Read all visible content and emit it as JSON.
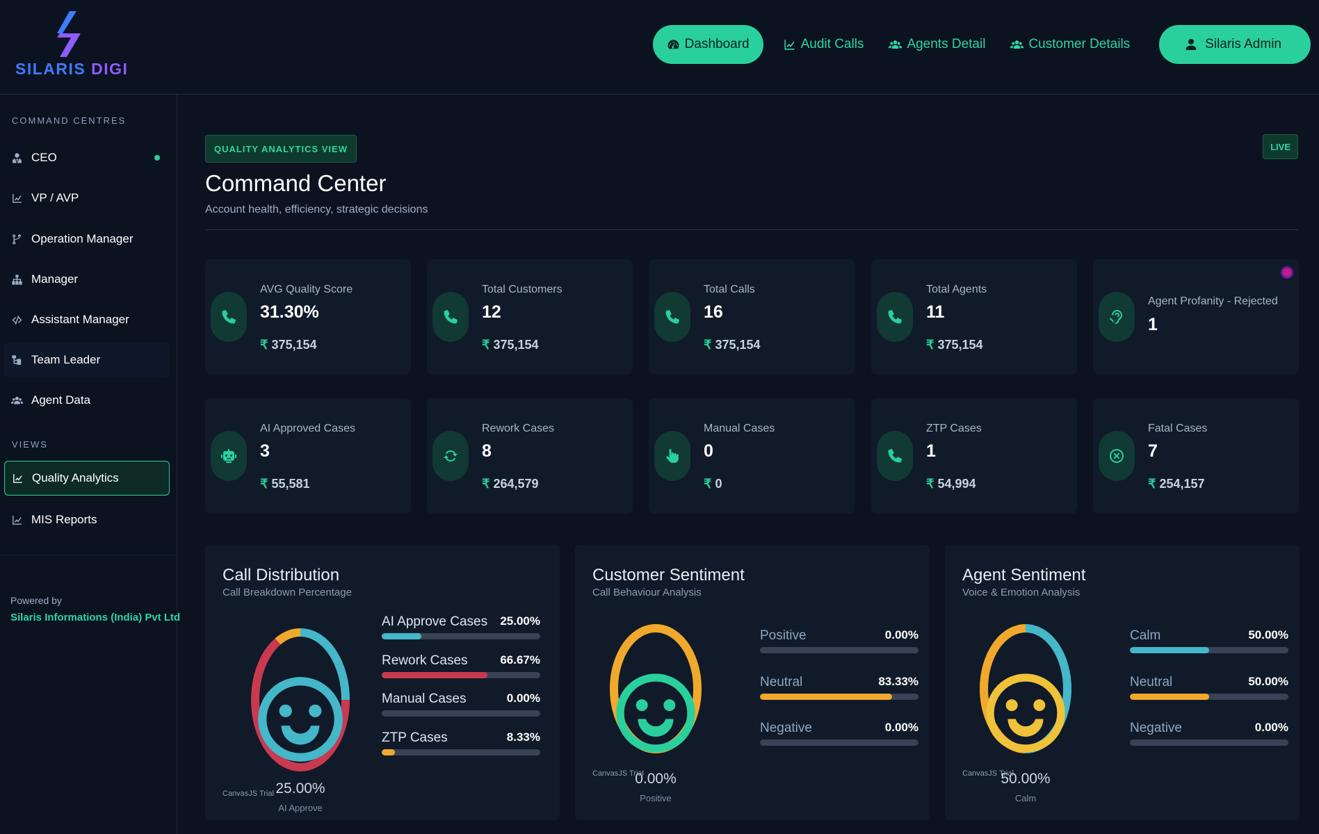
{
  "header": {
    "logo": {
      "word1": "SILARIS",
      "word2": "DIGI"
    },
    "nav": [
      {
        "label": "Dashboard",
        "icon": "dashboard-icon",
        "active": true
      },
      {
        "label": "Audit Calls",
        "icon": "chart-line-icon",
        "active": false
      },
      {
        "label": "Agents Detail",
        "icon": "users-icon",
        "active": false
      },
      {
        "label": "Customer Details",
        "icon": "users-icon",
        "active": false
      }
    ],
    "user": {
      "label": "Silaris Admin",
      "icon": "user-icon"
    }
  },
  "sidebar": {
    "section1": "COMMAND CENTRES",
    "items": [
      {
        "label": "CEO",
        "icon": "user-tie-icon"
      },
      {
        "label": "VP / AVP",
        "icon": "chart-line-icon"
      },
      {
        "label": "Operation Manager",
        "icon": "branch-icon"
      },
      {
        "label": "Manager",
        "icon": "sitemap-icon"
      },
      {
        "label": "Assistant Manager",
        "icon": "code-icon"
      },
      {
        "label": "Team Leader",
        "icon": "hierarchy-icon"
      },
      {
        "label": "Agent Data",
        "icon": "users-icon"
      }
    ],
    "section2": "VIEWS",
    "views": [
      {
        "label": "Quality Analytics",
        "icon": "chart-line-icon",
        "active": true
      },
      {
        "label": "MIS Reports",
        "icon": "chart-line-icon",
        "active": false
      }
    ],
    "powered_by": "Powered by",
    "company": "Silaris Informations (India) Pvt Ltd"
  },
  "main": {
    "badge": "QUALITY ANALYTICS VIEW",
    "live": "LIVE",
    "title": "Command Center",
    "subtitle": "Account health, efficiency, strategic decisions",
    "stats": [
      {
        "label": "AVG Quality Score",
        "value": "31.30%",
        "amount": "375,154",
        "icon": "phone-icon"
      },
      {
        "label": "Total Customers",
        "value": "12",
        "amount": "375,154",
        "icon": "phone-icon"
      },
      {
        "label": "Total Calls",
        "value": "16",
        "amount": "375,154",
        "icon": "phone-icon"
      },
      {
        "label": "Total Agents",
        "value": "11",
        "amount": "375,154",
        "icon": "phone-icon"
      },
      {
        "label": "Agent Profanity - Rejected",
        "value": "1",
        "amount": "",
        "icon": "ear-icon"
      },
      {
        "label": "AI Approved Cases",
        "value": "3",
        "amount": "55,581",
        "icon": "robot-icon"
      },
      {
        "label": "Rework Cases",
        "value": "8",
        "amount": "264,579",
        "icon": "refresh-icon"
      },
      {
        "label": "Manual Cases",
        "value": "0",
        "amount": "0",
        "icon": "hand-pointer-icon"
      },
      {
        "label": "ZTP Cases",
        "value": "1",
        "amount": "54,994",
        "icon": "phone-icon"
      },
      {
        "label": "Fatal Cases",
        "value": "7",
        "amount": "254,157",
        "icon": "x-circle-icon"
      }
    ],
    "currency": "₹",
    "colors": {
      "accent": "#2ad09c",
      "cyan": "#44b7c9",
      "red": "#c9394f",
      "orange": "#f0a92c",
      "track": "#3a4356"
    },
    "panels": [
      {
        "title": "Call Distribution",
        "subtitle": "Call Breakdown Percentage",
        "center_pct": "25.00%",
        "center_label": "AI Approve",
        "trial": "CanvasJS Trial",
        "items": [
          {
            "name": "AI Approve Cases",
            "pct": "25.00%",
            "value": 25.0,
            "color": "#44b7c9"
          },
          {
            "name": "Rework Cases",
            "pct": "66.67%",
            "value": 66.67,
            "color": "#c9394f"
          },
          {
            "name": "Manual Cases",
            "pct": "0.00%",
            "value": 0.0,
            "color": "#3a4356"
          },
          {
            "name": "ZTP Cases",
            "pct": "8.33%",
            "value": 8.33,
            "color": "#f0a92c"
          }
        ]
      },
      {
        "title": "Customer Sentiment",
        "subtitle": "Call Behaviour Analysis",
        "center_pct": "0.00%",
        "center_label": "Positive",
        "trial": "CanvasJS Trial",
        "items": [
          {
            "name": "Positive",
            "pct": "0.00%",
            "value": 0.0,
            "color": "#2ad09c"
          },
          {
            "name": "Neutral",
            "pct": "83.33%",
            "value": 83.33,
            "color": "#f0a92c"
          },
          {
            "name": "Negative",
            "pct": "0.00%",
            "value": 0.0,
            "color": "#c9394f"
          }
        ]
      },
      {
        "title": "Agent Sentiment",
        "subtitle": "Voice & Emotion Analysis",
        "center_pct": "50.00%",
        "center_label": "Calm",
        "trial": "CanvasJS Trial",
        "items": [
          {
            "name": "Calm",
            "pct": "50.00%",
            "value": 50.0,
            "color": "#44b7c9"
          },
          {
            "name": "Neutral",
            "pct": "50.00%",
            "value": 50.0,
            "color": "#f0a92c"
          },
          {
            "name": "Negative",
            "pct": "0.00%",
            "value": 0.0,
            "color": "#c9394f"
          }
        ]
      }
    ]
  }
}
